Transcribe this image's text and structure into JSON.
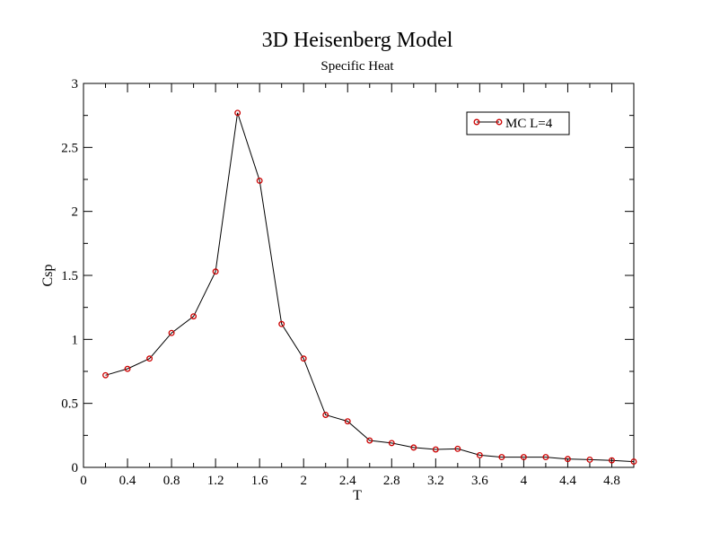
{
  "chart_data": {
    "type": "line",
    "title": "3D Heisenberg Model",
    "subtitle": "Specific Heat",
    "xlabel": "T",
    "ylabel": "Csp",
    "xlim": [
      0,
      5
    ],
    "ylim": [
      0,
      3
    ],
    "x_ticks": [
      "0",
      "0.4",
      "0.8",
      "1.2",
      "1.6",
      "2",
      "2.4",
      "2.8",
      "3.2",
      "3.6",
      "4",
      "4.4",
      "4.8"
    ],
    "x_tick_values": [
      0,
      0.4,
      0.8,
      1.2,
      1.6,
      2.0,
      2.4,
      2.8,
      3.2,
      3.6,
      4.0,
      4.4,
      4.8
    ],
    "y_ticks": [
      "0",
      "0.5",
      "1",
      "1.5",
      "2",
      "2.5",
      "3"
    ],
    "y_tick_values": [
      0,
      0.5,
      1,
      1.5,
      2,
      2.5,
      3
    ],
    "grid": false,
    "legend_position": "top-right",
    "series": [
      {
        "name": "MC L=4",
        "line_color": "#000000",
        "marker_color": "#cc0000",
        "x": [
          0.2,
          0.4,
          0.6,
          0.8,
          1.0,
          1.2,
          1.4,
          1.6,
          1.8,
          2.0,
          2.2,
          2.4,
          2.6,
          2.8,
          3.0,
          3.2,
          3.4,
          3.6,
          3.8,
          4.0,
          4.2,
          4.4,
          4.6,
          4.8,
          5.0
        ],
        "y": [
          0.72,
          0.77,
          0.85,
          1.05,
          1.18,
          1.53,
          2.77,
          2.24,
          1.12,
          0.85,
          0.41,
          0.36,
          0.21,
          0.19,
          0.155,
          0.14,
          0.145,
          0.095,
          0.08,
          0.08,
          0.08,
          0.065,
          0.06,
          0.055,
          0.045
        ]
      }
    ]
  }
}
